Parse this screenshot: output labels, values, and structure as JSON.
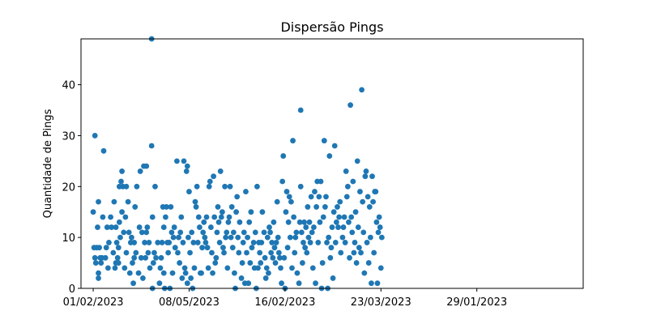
{
  "chart_data": {
    "type": "scatter",
    "title": "Dispersão Pings",
    "xlabel": "",
    "ylabel": "Quantidade de Pings",
    "xlim": [
      -14,
      562
    ],
    "ylim": [
      0,
      49
    ],
    "x_ticks": [
      {
        "x": 0,
        "label": "01/02/2023"
      },
      {
        "x": 110,
        "label": "08/05/2023"
      },
      {
        "x": 220,
        "label": "16/02/2023"
      },
      {
        "x": 330,
        "label": "23/03/2023"
      },
      {
        "x": 440,
        "label": "29/01/2023"
      }
    ],
    "y_ticks": [
      0,
      10,
      20,
      30,
      40
    ],
    "grid": false,
    "marker_color": "#1f77b4",
    "series": [
      {
        "points": [
          [
            0,
            15
          ],
          [
            1,
            8
          ],
          [
            2,
            30
          ],
          [
            2,
            6
          ],
          [
            3,
            5
          ],
          [
            4,
            8
          ],
          [
            5,
            12
          ],
          [
            6,
            17
          ],
          [
            6,
            3
          ],
          [
            6,
            2
          ],
          [
            7,
            8
          ],
          [
            8,
            6
          ],
          [
            9,
            5
          ],
          [
            10,
            6
          ],
          [
            11,
            14
          ],
          [
            12,
            27
          ],
          [
            14,
            6
          ],
          [
            15,
            8
          ],
          [
            16,
            12
          ],
          [
            17,
            4
          ],
          [
            18,
            9
          ],
          [
            20,
            14
          ],
          [
            21,
            12
          ],
          [
            23,
            7
          ],
          [
            24,
            17
          ],
          [
            25,
            4
          ],
          [
            26,
            5
          ],
          [
            26,
            12
          ],
          [
            27,
            9
          ],
          [
            28,
            6
          ],
          [
            29,
            8
          ],
          [
            29,
            5
          ],
          [
            30,
            13
          ],
          [
            30,
            20
          ],
          [
            31,
            10
          ],
          [
            32,
            21
          ],
          [
            33,
            15
          ],
          [
            33,
            23
          ],
          [
            34,
            20
          ],
          [
            35,
            11
          ],
          [
            36,
            4
          ],
          [
            37,
            14
          ],
          [
            38,
            20
          ],
          [
            38,
            7
          ],
          [
            40,
            17
          ],
          [
            41,
            11
          ],
          [
            42,
            3
          ],
          [
            43,
            9
          ],
          [
            44,
            10
          ],
          [
            45,
            5
          ],
          [
            46,
            1
          ],
          [
            47,
            9
          ],
          [
            47,
            6
          ],
          [
            48,
            16
          ],
          [
            49,
            7
          ],
          [
            50,
            20
          ],
          [
            52,
            3
          ],
          [
            53,
            12
          ],
          [
            54,
            23
          ],
          [
            55,
            6
          ],
          [
            56,
            11
          ],
          [
            57,
            2
          ],
          [
            58,
            24
          ],
          [
            59,
            9
          ],
          [
            60,
            6
          ],
          [
            61,
            11
          ],
          [
            61,
            24
          ],
          [
            62,
            12
          ],
          [
            63,
            7
          ],
          [
            64,
            9
          ],
          [
            65,
            4
          ],
          [
            67,
            49
          ],
          [
            67,
            28
          ],
          [
            68,
            14
          ],
          [
            68,
            0
          ],
          [
            69,
            5
          ],
          [
            70,
            7
          ],
          [
            71,
            20
          ],
          [
            72,
            6
          ],
          [
            74,
            9
          ],
          [
            76,
            1
          ],
          [
            77,
            4
          ],
          [
            78,
            6
          ],
          [
            79,
            9
          ],
          [
            80,
            16
          ],
          [
            81,
            12
          ],
          [
            81,
            3
          ],
          [
            82,
            0
          ],
          [
            83,
            14
          ],
          [
            84,
            16
          ],
          [
            85,
            9
          ],
          [
            86,
            7
          ],
          [
            87,
            9
          ],
          [
            88,
            0
          ],
          [
            89,
            16
          ],
          [
            90,
            11
          ],
          [
            91,
            3
          ],
          [
            92,
            10
          ],
          [
            93,
            12
          ],
          [
            94,
            8
          ],
          [
            96,
            25
          ],
          [
            97,
            7
          ],
          [
            98,
            10
          ],
          [
            99,
            5
          ],
          [
            100,
            11
          ],
          [
            101,
            14
          ],
          [
            102,
            2
          ],
          [
            103,
            9
          ],
          [
            104,
            25
          ],
          [
            105,
            4
          ],
          [
            106,
            3
          ],
          [
            107,
            23
          ],
          [
            108,
            24
          ],
          [
            108,
            1
          ],
          [
            109,
            10
          ],
          [
            110,
            19
          ],
          [
            111,
            7
          ],
          [
            112,
            2
          ],
          [
            113,
            11
          ],
          [
            114,
            0
          ],
          [
            115,
            9
          ],
          [
            116,
            4
          ],
          [
            117,
            17
          ],
          [
            118,
            16
          ],
          [
            119,
            20
          ],
          [
            120,
            9
          ],
          [
            121,
            14
          ],
          [
            122,
            12
          ],
          [
            123,
            3
          ],
          [
            124,
            3
          ],
          [
            125,
            8
          ],
          [
            126,
            11
          ],
          [
            127,
            13
          ],
          [
            128,
            10
          ],
          [
            129,
            9
          ],
          [
            130,
            14
          ],
          [
            131,
            8
          ],
          [
            132,
            4
          ],
          [
            133,
            20
          ],
          [
            134,
            21
          ],
          [
            135,
            12
          ],
          [
            136,
            7
          ],
          [
            137,
            3
          ],
          [
            138,
            22
          ],
          [
            139,
            14
          ],
          [
            140,
            5
          ],
          [
            141,
            6
          ],
          [
            142,
            11
          ],
          [
            143,
            16
          ],
          [
            144,
            13
          ],
          [
            145,
            9
          ],
          [
            146,
            23
          ],
          [
            147,
            14
          ],
          [
            148,
            15
          ],
          [
            149,
            8
          ],
          [
            150,
            7
          ],
          [
            151,
            20
          ],
          [
            152,
            10
          ],
          [
            153,
            11
          ],
          [
            154,
            4
          ],
          [
            155,
            13
          ],
          [
            156,
            14
          ],
          [
            157,
            20
          ],
          [
            158,
            10
          ],
          [
            159,
            16
          ],
          [
            160,
            8
          ],
          [
            161,
            11
          ],
          [
            162,
            3
          ],
          [
            163,
            0
          ],
          [
            164,
            15
          ],
          [
            165,
            18
          ],
          [
            166,
            10
          ],
          [
            167,
            7
          ],
          [
            168,
            13
          ],
          [
            170,
            2
          ],
          [
            171,
            5
          ],
          [
            172,
            9
          ],
          [
            173,
            11
          ],
          [
            174,
            1
          ],
          [
            175,
            19
          ],
          [
            176,
            7
          ],
          [
            177,
            10
          ],
          [
            178,
            1
          ],
          [
            179,
            13
          ],
          [
            180,
            5
          ],
          [
            181,
            15
          ],
          [
            182,
            8
          ],
          [
            184,
            9
          ],
          [
            185,
            4
          ],
          [
            186,
            11
          ],
          [
            187,
            0
          ],
          [
            188,
            20
          ],
          [
            189,
            4
          ],
          [
            190,
            9
          ],
          [
            191,
            7
          ],
          [
            192,
            5
          ],
          [
            193,
            9
          ],
          [
            194,
            15
          ],
          [
            196,
            11
          ],
          [
            197,
            6
          ],
          [
            198,
            2
          ],
          [
            199,
            4
          ],
          [
            200,
            10
          ],
          [
            201,
            3
          ],
          [
            202,
            12
          ],
          [
            203,
            11
          ],
          [
            204,
            7
          ],
          [
            205,
            9
          ],
          [
            206,
            6
          ],
          [
            207,
            13
          ],
          [
            208,
            8
          ],
          [
            209,
            5
          ],
          [
            210,
            9
          ],
          [
            211,
            17
          ],
          [
            212,
            10
          ],
          [
            213,
            7
          ],
          [
            214,
            6
          ],
          [
            215,
            4
          ],
          [
            216,
            1
          ],
          [
            217,
            21
          ],
          [
            218,
            26
          ],
          [
            219,
            6
          ],
          [
            220,
            0
          ],
          [
            221,
            15
          ],
          [
            222,
            19
          ],
          [
            223,
            8
          ],
          [
            224,
            13
          ],
          [
            225,
            18
          ],
          [
            226,
            10
          ],
          [
            227,
            17
          ],
          [
            228,
            4
          ],
          [
            229,
            29
          ],
          [
            230,
            14
          ],
          [
            231,
            7
          ],
          [
            232,
            10
          ],
          [
            233,
            11
          ],
          [
            234,
            3
          ],
          [
            236,
            1
          ],
          [
            237,
            13
          ],
          [
            238,
            35
          ],
          [
            238,
            20
          ],
          [
            239,
            11
          ],
          [
            240,
            5
          ],
          [
            241,
            9
          ],
          [
            242,
            13
          ],
          [
            243,
            8
          ],
          [
            244,
            12
          ],
          [
            245,
            7
          ],
          [
            246,
            16
          ],
          [
            247,
            10
          ],
          [
            248,
            13
          ],
          [
            249,
            9
          ],
          [
            250,
            18
          ],
          [
            251,
            11
          ],
          [
            252,
            4
          ],
          [
            253,
            12
          ],
          [
            254,
            19
          ],
          [
            255,
            1
          ],
          [
            256,
            16
          ],
          [
            257,
            21
          ],
          [
            258,
            9
          ],
          [
            259,
            18
          ],
          [
            260,
            13
          ],
          [
            261,
            21
          ],
          [
            262,
            0
          ],
          [
            263,
            5
          ],
          [
            264,
            14
          ],
          [
            265,
            29
          ],
          [
            266,
            16
          ],
          [
            267,
            18
          ],
          [
            268,
            9
          ],
          [
            269,
            0
          ],
          [
            270,
            10
          ],
          [
            271,
            26
          ],
          [
            272,
            6
          ],
          [
            273,
            8
          ],
          [
            274,
            12
          ],
          [
            275,
            2
          ],
          [
            276,
            15
          ],
          [
            277,
            28
          ],
          [
            278,
            9
          ],
          [
            279,
            13
          ],
          [
            280,
            16
          ],
          [
            281,
            12
          ],
          [
            282,
            14
          ],
          [
            283,
            17
          ],
          [
            284,
            7
          ],
          [
            286,
            10
          ],
          [
            287,
            12
          ],
          [
            288,
            14
          ],
          [
            289,
            9
          ],
          [
            290,
            23
          ],
          [
            291,
            18
          ],
          [
            292,
            20
          ],
          [
            293,
            13
          ],
          [
            294,
            6
          ],
          [
            295,
            36
          ],
          [
            296,
            14
          ],
          [
            297,
            11
          ],
          [
            298,
            21
          ],
          [
            299,
            7
          ],
          [
            300,
            9
          ],
          [
            301,
            15
          ],
          [
            302,
            5
          ],
          [
            303,
            25
          ],
          [
            304,
            12
          ],
          [
            305,
            8
          ],
          [
            306,
            19
          ],
          [
            307,
            7
          ],
          [
            308,
            39
          ],
          [
            309,
            17
          ],
          [
            310,
            11
          ],
          [
            311,
            3
          ],
          [
            312,
            22
          ],
          [
            313,
            23
          ],
          [
            314,
            9
          ],
          [
            315,
            18
          ],
          [
            316,
            5
          ],
          [
            317,
            16
          ],
          [
            318,
            10
          ],
          [
            319,
            1
          ],
          [
            320,
            22
          ],
          [
            321,
            17
          ],
          [
            322,
            7
          ],
          [
            323,
            19
          ],
          [
            324,
            19
          ],
          [
            325,
            13
          ],
          [
            326,
            1
          ],
          [
            327,
            11
          ],
          [
            328,
            14
          ],
          [
            329,
            12
          ],
          [
            330,
            4
          ],
          [
            331,
            10
          ]
        ]
      }
    ]
  }
}
